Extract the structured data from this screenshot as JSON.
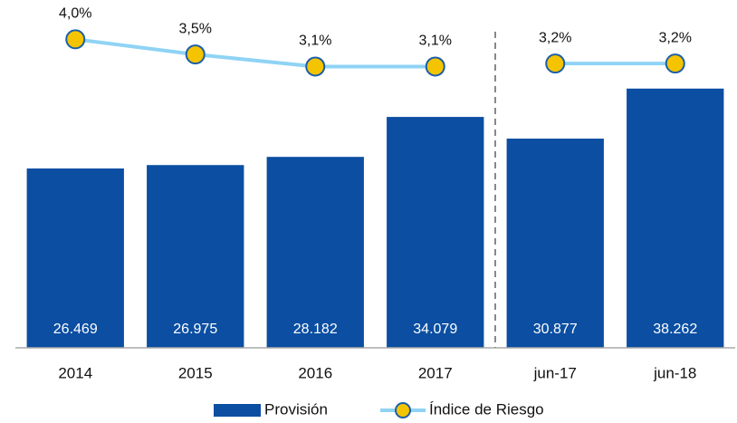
{
  "chart_data": {
    "type": "bar+line",
    "categories": [
      "2014",
      "2015",
      "2016",
      "2017",
      "jun-17",
      "jun-18"
    ],
    "series": [
      {
        "name": "Provisión",
        "type": "bar",
        "color": "#0b4ea2",
        "values": [
          26469,
          26975,
          28182,
          34079,
          30877,
          38262
        ],
        "value_labels": [
          "26.469",
          "26.975",
          "28.182",
          "34.079",
          "30.877",
          "38.262"
        ]
      },
      {
        "name": "Índice de Riesgo",
        "type": "line",
        "axis": "y2",
        "color": "#8fd3f5",
        "marker_color": "#f5c400",
        "values": [
          4.0,
          3.5,
          3.1,
          3.1,
          3.2,
          3.2
        ],
        "value_labels": [
          "4,0%",
          "3,5%",
          "3,1%",
          "3,1%",
          "3,2%",
          "3,2%"
        ]
      }
    ],
    "ylim": [
      0,
      50000
    ],
    "y2lim": [
      -6.2,
      5.0
    ],
    "divider_after": 3
  }
}
